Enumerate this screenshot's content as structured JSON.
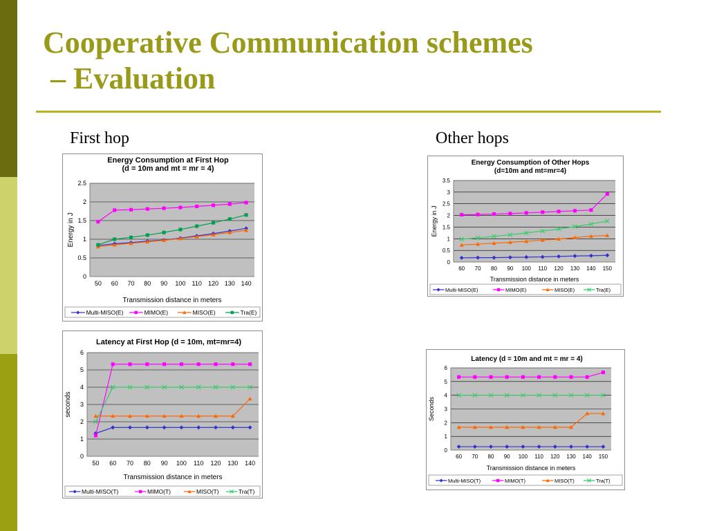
{
  "slide": {
    "title_line1": "Cooperative Communication schemes",
    "title_line2": " – Evaluation",
    "caption_left": "First hop",
    "caption_right": "Other hops"
  },
  "colors": {
    "multi_miso": "#3333cc",
    "mimo": "#ff00ff",
    "miso": "#ff6600",
    "tra_e": "#00a050",
    "tra_t": "#33cc66",
    "plot_bg": "#c0c0c0"
  },
  "chart_data": [
    {
      "id": "c1",
      "type": "line",
      "title": [
        "Energy Consumption at First Hop",
        "(d = 10m and mt = mr = 4)"
      ],
      "xlabel": "Transmission distance in meters",
      "ylabel": "Energy in J",
      "x": [
        50,
        60,
        70,
        80,
        90,
        100,
        110,
        120,
        130,
        140
      ],
      "ylim": [
        0,
        2.5
      ],
      "yticks": [
        0,
        0.5,
        1,
        1.5,
        2,
        2.5
      ],
      "series": [
        {
          "name": "Multi-MISO(E)",
          "values": [
            0.83,
            0.88,
            0.91,
            0.95,
            0.98,
            1.03,
            1.09,
            1.15,
            1.22,
            1.29
          ]
        },
        {
          "name": "MIMO(E)",
          "values": [
            1.47,
            1.78,
            1.79,
            1.81,
            1.83,
            1.85,
            1.88,
            1.91,
            1.94,
            1.98
          ]
        },
        {
          "name": "MISO(E)",
          "values": [
            0.8,
            0.85,
            0.89,
            0.93,
            0.97,
            1.02,
            1.07,
            1.12,
            1.18,
            1.24
          ]
        },
        {
          "name": "Tra(E)",
          "values": [
            0.85,
            1.0,
            1.05,
            1.11,
            1.18,
            1.26,
            1.35,
            1.44,
            1.54,
            1.65
          ]
        }
      ]
    },
    {
      "id": "c2",
      "type": "line",
      "title": [
        "Energy Consumption of Other Hops",
        "(d=10m and mt=mr=4)"
      ],
      "xlabel": "Transmission distance in meters",
      "ylabel": "Energy in J",
      "x": [
        60,
        70,
        80,
        90,
        100,
        110,
        120,
        130,
        140,
        150
      ],
      "ylim": [
        0,
        3.5
      ],
      "yticks": [
        0,
        0.5,
        1,
        1.5,
        2,
        2.5,
        3,
        3.5
      ],
      "series": [
        {
          "name": "Multi-MISO(E)",
          "values": [
            0.18,
            0.19,
            0.19,
            0.2,
            0.21,
            0.22,
            0.24,
            0.26,
            0.27,
            0.29
          ]
        },
        {
          "name": "MIMO(E)",
          "values": [
            2.03,
            2.04,
            2.06,
            2.08,
            2.11,
            2.14,
            2.17,
            2.2,
            2.23,
            2.92
          ]
        },
        {
          "name": "MISO(E)",
          "values": [
            0.73,
            0.77,
            0.81,
            0.85,
            0.89,
            0.94,
            0.99,
            1.05,
            1.11,
            1.14
          ]
        },
        {
          "name": "Tra(E)",
          "values": [
            0.98,
            1.04,
            1.1,
            1.17,
            1.25,
            1.33,
            1.42,
            1.52,
            1.63,
            1.76
          ]
        }
      ]
    },
    {
      "id": "c3",
      "type": "line",
      "title": [
        "Latency at First Hop (d = 10m, mt=mr=4)"
      ],
      "xlabel": "Transmission distance in meters",
      "ylabel": "seconds",
      "x": [
        50,
        60,
        70,
        80,
        90,
        100,
        110,
        120,
        130,
        140
      ],
      "ylim": [
        0,
        6
      ],
      "yticks": [
        0,
        1,
        2,
        3,
        4,
        5,
        6
      ],
      "series": [
        {
          "name": "Multi-MISO(T)",
          "values": [
            1.33,
            1.67,
            1.67,
            1.67,
            1.67,
            1.67,
            1.67,
            1.67,
            1.67,
            1.67
          ]
        },
        {
          "name": "MIMO(T)",
          "values": [
            1.2,
            5.33,
            5.33,
            5.33,
            5.33,
            5.33,
            5.33,
            5.33,
            5.33,
            5.33
          ]
        },
        {
          "name": "MISO(T)",
          "values": [
            2.33,
            2.33,
            2.33,
            2.33,
            2.33,
            2.33,
            2.33,
            2.33,
            2.33,
            3.33
          ]
        },
        {
          "name": "Tra(T)",
          "values": [
            2.0,
            4.0,
            4.0,
            4.0,
            4.0,
            4.0,
            4.0,
            4.0,
            4.0,
            4.0
          ]
        }
      ]
    },
    {
      "id": "c4",
      "type": "line",
      "title": [
        "Latency (d = 10m and mt = mr = 4)"
      ],
      "xlabel": "Transmission distance in meters",
      "ylabel": "Seconds",
      "x": [
        60,
        70,
        80,
        90,
        100,
        110,
        120,
        130,
        140,
        150
      ],
      "ylim": [
        0,
        6
      ],
      "yticks": [
        0,
        1,
        2,
        3,
        4,
        5,
        6
      ],
      "series": [
        {
          "name": "Multi-MISO(T)",
          "values": [
            0.25,
            0.25,
            0.25,
            0.25,
            0.25,
            0.25,
            0.25,
            0.25,
            0.25,
            0.25
          ]
        },
        {
          "name": "MIMO(T)",
          "values": [
            5.33,
            5.33,
            5.33,
            5.33,
            5.33,
            5.33,
            5.33,
            5.33,
            5.33,
            5.67
          ]
        },
        {
          "name": "MISO(T)",
          "values": [
            1.67,
            1.67,
            1.67,
            1.67,
            1.67,
            1.67,
            1.67,
            1.67,
            2.67,
            2.67
          ]
        },
        {
          "name": "Tra(T)",
          "values": [
            4.0,
            4.0,
            4.0,
            4.0,
            4.0,
            4.0,
            4.0,
            4.0,
            4.0,
            4.0
          ]
        }
      ]
    }
  ]
}
